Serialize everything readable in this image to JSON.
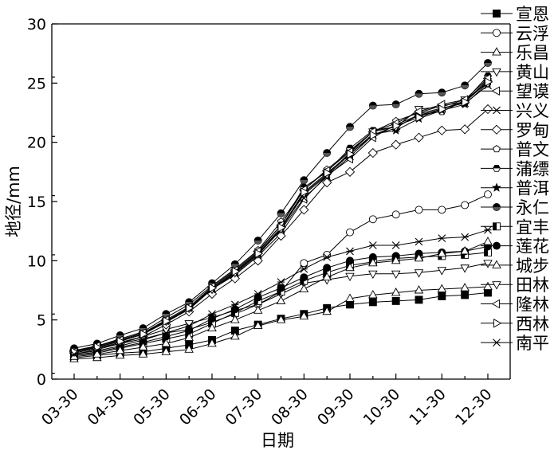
{
  "chart_data": {
    "type": "line",
    "title": "",
    "xlabel": "日期",
    "ylabel": "地径/mm",
    "ylim": [
      0,
      30
    ],
    "yticks": [
      0,
      5,
      10,
      15,
      20,
      25,
      30
    ],
    "xticks": [
      "03-30",
      "04-30",
      "05-30",
      "06-30",
      "07-30",
      "08-30",
      "09-30",
      "10-30",
      "11-30",
      "12-30"
    ],
    "x": [
      "03-30",
      "04-15",
      "04-30",
      "05-15",
      "05-30",
      "06-15",
      "06-30",
      "07-15",
      "07-30",
      "08-15",
      "08-30",
      "09-15",
      "09-30",
      "10-15",
      "10-30",
      "11-15",
      "11-30",
      "12-15",
      "12-30"
    ],
    "legend_position": "right",
    "grid": false,
    "series": [
      {
        "name": "宣恩",
        "marker": "square-filled",
        "values": [
          1.8,
          2.0,
          2.2,
          2.3,
          2.6,
          2.9,
          3.3,
          4.1,
          4.6,
          5.1,
          5.5,
          6.0,
          6.3,
          6.5,
          6.6,
          6.7,
          7.0,
          7.1,
          7.3
        ]
      },
      {
        "name": "云浮",
        "marker": "circle-open",
        "values": [
          2.1,
          2.5,
          3.0,
          3.4,
          3.9,
          4.2,
          4.8,
          5.5,
          6.3,
          7.4,
          9.8,
          10.5,
          12.4,
          13.5,
          13.9,
          14.3,
          14.3,
          14.7,
          15.6
        ]
      },
      {
        "name": "乐昌",
        "marker": "triangle-up-open",
        "values": [
          1.7,
          1.8,
          2.0,
          2.1,
          2.3,
          2.5,
          3.0,
          3.6,
          4.5,
          5.0,
          5.3,
          5.7,
          6.8,
          7.1,
          7.3,
          7.5,
          7.6,
          7.7,
          7.8
        ]
      },
      {
        "name": "黄山",
        "marker": "triangle-down-open",
        "values": [
          2.2,
          2.6,
          3.1,
          3.6,
          4.2,
          4.7,
          5.2,
          5.8,
          6.3,
          7.2,
          8.1,
          8.4,
          8.7,
          8.9,
          8.9,
          9.0,
          9.2,
          9.4,
          9.8
        ]
      },
      {
        "name": "望谟",
        "marker": "triangle-left-open",
        "values": [
          2.4,
          2.8,
          3.3,
          3.9,
          4.9,
          5.9,
          7.6,
          8.8,
          10.4,
          12.3,
          15.2,
          17.2,
          18.6,
          20.4,
          21.5,
          22.3,
          22.8,
          23.5,
          25.2
        ]
      },
      {
        "name": "兴义",
        "marker": "x",
        "values": [
          2.3,
          2.7,
          3.2,
          3.8,
          4.8,
          5.9,
          7.6,
          8.9,
          10.5,
          12.6,
          15.3,
          17.1,
          18.8,
          20.6,
          21.2,
          22.4,
          22.9,
          23.3,
          24.8
        ]
      },
      {
        "name": "罗甸",
        "marker": "diamond-open",
        "values": [
          2.2,
          2.6,
          3.0,
          3.6,
          4.6,
          5.7,
          7.2,
          8.5,
          10.0,
          12.1,
          14.3,
          16.6,
          17.5,
          19.1,
          19.8,
          20.4,
          21.0,
          21.1,
          22.8
        ]
      },
      {
        "name": "普文",
        "marker": "pentagon-open",
        "values": [
          2.4,
          2.8,
          3.4,
          4.0,
          5.2,
          6.3,
          7.9,
          9.3,
          10.9,
          13.3,
          16.0,
          17.7,
          19.3,
          20.9,
          21.8,
          22.5,
          23.1,
          23.4,
          25.3
        ]
      },
      {
        "name": "蒲缥",
        "marker": "hexagon-half",
        "values": [
          2.4,
          2.8,
          3.3,
          3.9,
          4.9,
          6.0,
          7.7,
          9.1,
          10.7,
          13.0,
          16.2,
          17.5,
          19.5,
          21.0,
          21.3,
          22.3,
          22.6,
          23.5,
          25.6
        ]
      },
      {
        "name": "普洱",
        "marker": "star",
        "values": [
          2.3,
          2.7,
          3.2,
          3.8,
          4.9,
          6.0,
          7.6,
          9.0,
          10.6,
          12.7,
          15.6,
          17.2,
          19.0,
          20.7,
          21.0,
          22.0,
          22.7,
          23.2,
          25.0
        ]
      },
      {
        "name": "永仁",
        "marker": "circle-half",
        "values": [
          2.6,
          3.0,
          3.7,
          4.3,
          5.5,
          6.5,
          8.1,
          9.7,
          11.7,
          14.0,
          16.8,
          19.1,
          21.3,
          23.1,
          23.2,
          24.1,
          24.2,
          24.8,
          26.7
        ]
      },
      {
        "name": "宜丰",
        "marker": "square-half",
        "values": [
          2.0,
          2.2,
          2.6,
          3.0,
          3.4,
          3.8,
          4.7,
          5.6,
          6.6,
          7.4,
          8.3,
          9.0,
          9.6,
          9.9,
          10.2,
          10.3,
          10.4,
          10.5,
          10.7
        ]
      },
      {
        "name": "莲花",
        "marker": "circle-filled",
        "values": [
          2.0,
          2.3,
          2.7,
          3.1,
          3.6,
          4.1,
          5.1,
          5.9,
          6.9,
          7.7,
          8.6,
          9.4,
          10.0,
          10.3,
          10.4,
          10.6,
          10.7,
          10.8,
          11.2
        ]
      },
      {
        "name": "城步",
        "marker": "triangle-up-open",
        "values": [
          1.9,
          2.1,
          2.4,
          2.7,
          3.0,
          3.5,
          4.3,
          5.0,
          5.8,
          6.6,
          7.6,
          8.6,
          9.4,
          9.8,
          10.0,
          10.2,
          10.6,
          10.8,
          11.6
        ]
      },
      {
        "name": "田林",
        "marker": "triangle-down-open",
        "values": [
          2.3,
          2.7,
          3.2,
          3.8,
          4.9,
          6.0,
          7.6,
          9.0,
          10.6,
          12.7,
          15.7,
          17.3,
          19.1,
          20.9,
          21.3,
          22.8,
          23.0,
          23.6,
          25.0
        ]
      },
      {
        "name": "隆林",
        "marker": "triangle-left-open",
        "values": [
          2.3,
          2.8,
          3.3,
          3.9,
          5.0,
          6.1,
          7.8,
          9.2,
          10.8,
          13.0,
          16.0,
          17.6,
          19.2,
          20.9,
          21.6,
          22.6,
          23.2,
          23.6,
          25.4
        ]
      },
      {
        "name": "西林",
        "marker": "triangle-right-open",
        "values": [
          2.3,
          2.7,
          3.2,
          3.8,
          4.9,
          6.0,
          7.7,
          9.1,
          10.6,
          12.8,
          15.8,
          17.4,
          19.0,
          20.6,
          21.4,
          22.1,
          22.8,
          23.4,
          25.1
        ]
      },
      {
        "name": "南平",
        "marker": "x-circle",
        "values": [
          2.1,
          2.4,
          2.8,
          3.3,
          3.9,
          4.5,
          5.5,
          6.3,
          7.2,
          8.2,
          9.3,
          10.3,
          10.8,
          11.3,
          11.3,
          11.6,
          11.9,
          12.0,
          12.6
        ]
      }
    ]
  }
}
